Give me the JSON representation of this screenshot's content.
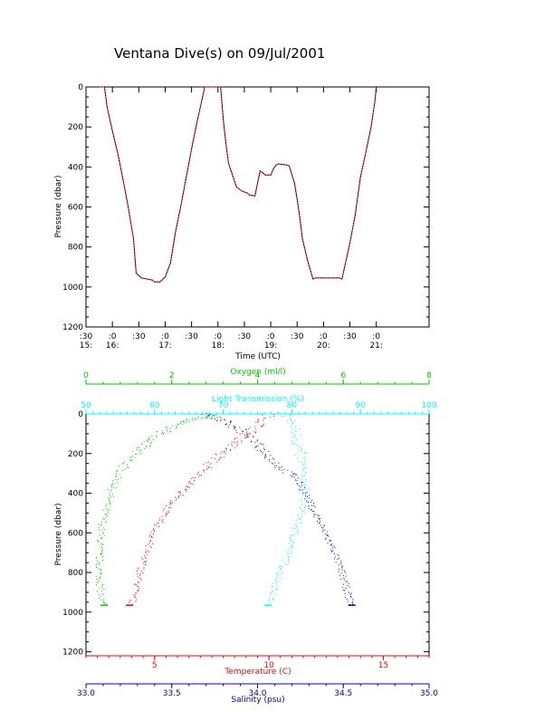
{
  "title": "Ventana Dive(s) on 09/Jul/2001",
  "colors": {
    "axes": "#000000",
    "dive_track": "#cc0000",
    "dive_track_points": "#000000",
    "temperature": "#ff0000",
    "salinity": "#0000cc",
    "oxygen": "#00cc00",
    "light_transmission": "#00ffff"
  },
  "chart_data": [
    {
      "type": "line",
      "title": "Ventana Dive(s) on 09/Jul/2001",
      "xlabel": "Time (UTC)",
      "ylabel": "Pressure (dbar)",
      "x_units": "hours UTC",
      "xlim": [
        15.5,
        22.0
      ],
      "ylim": [
        1200,
        0
      ],
      "y_ticks": [
        0,
        200,
        400,
        600,
        800,
        1000,
        1200
      ],
      "x_ticks": [
        {
          "x": 15.5,
          "top": ":30",
          "bottom": "15:"
        },
        {
          "x": 16.0,
          "top": ":0",
          "bottom": "16:"
        },
        {
          "x": 16.5,
          "top": ":30",
          "bottom": ""
        },
        {
          "x": 17.0,
          "top": ":0",
          "bottom": "17:"
        },
        {
          "x": 17.5,
          "top": ":30",
          "bottom": ""
        },
        {
          "x": 18.0,
          "top": ":0",
          "bottom": "18:"
        },
        {
          "x": 18.5,
          "top": ":30",
          "bottom": ""
        },
        {
          "x": 19.0,
          "top": ":0",
          "bottom": "19:"
        },
        {
          "x": 19.5,
          "top": ":30",
          "bottom": ""
        },
        {
          "x": 20.0,
          "top": ":0",
          "bottom": "20:"
        },
        {
          "x": 20.5,
          "top": ":30",
          "bottom": ""
        },
        {
          "x": 21.0,
          "top": ":0",
          "bottom": "21:"
        }
      ],
      "series": [
        {
          "x": [
            15.75,
            15.85,
            15.9,
            16.0,
            16.1,
            16.2,
            16.3,
            16.4,
            16.45,
            16.55,
            16.65,
            16.75,
            16.8,
            16.9,
            17.0,
            17.1,
            17.2,
            17.3,
            17.4,
            17.5,
            17.6,
            17.7,
            17.75,
            17.85,
            17.95,
            18.0,
            18.05,
            18.1,
            18.15,
            18.2,
            18.25,
            18.3,
            18.35,
            18.4,
            18.45,
            18.55,
            18.6,
            18.7,
            18.75,
            18.8,
            18.9,
            19.0,
            19.05,
            19.1,
            19.15,
            19.3,
            19.35,
            19.45,
            19.5,
            19.55,
            19.6,
            19.7,
            19.8,
            19.85,
            19.9,
            20.0,
            20.3,
            20.35,
            20.4,
            20.5,
            20.6,
            20.7,
            20.8,
            20.9,
            20.97,
            21.0
          ],
          "y": [
            0,
            0,
            100,
            220,
            330,
            460,
            600,
            760,
            930,
            955,
            960,
            965,
            975,
            975,
            950,
            880,
            720,
            590,
            450,
            310,
            180,
            60,
            0,
            0,
            0,
            0,
            0,
            160,
            280,
            380,
            420,
            460,
            500,
            510,
            520,
            530,
            540,
            545,
            480,
            420,
            440,
            440,
            410,
            390,
            385,
            390,
            395,
            480,
            560,
            650,
            760,
            870,
            960,
            955,
            955,
            955,
            955,
            960,
            900,
            780,
            640,
            450,
            330,
            200,
            80,
            0
          ]
        }
      ]
    },
    {
      "type": "scatter",
      "ylabel": "Pressure (dbar)",
      "ylim": [
        1220,
        0
      ],
      "y_ticks": [
        0,
        200,
        400,
        600,
        800,
        1000,
        1200
      ],
      "axes": {
        "oxygen": {
          "label": "Oxygen (ml/l)",
          "range": [
            0,
            8
          ],
          "ticks": [
            0,
            2,
            4,
            6,
            8
          ],
          "position": "top"
        },
        "light_transmission": {
          "label": "Light Transmission (%)",
          "range": [
            50,
            100
          ],
          "ticks": [
            50,
            60,
            70,
            80,
            90,
            100
          ],
          "position": "top"
        },
        "temperature": {
          "label": "Temperature (C)",
          "range": [
            2.0,
            17.0
          ],
          "ticks": [
            5,
            10,
            15
          ],
          "position": "bottom"
        },
        "salinity": {
          "label": "Salinity (psu)",
          "range": [
            33.0,
            35.0
          ],
          "ticks": [
            "33.0",
            "33.5",
            "34.0",
            "34.5",
            "35.0"
          ],
          "tick_values": [
            33.0,
            33.5,
            34.0,
            34.5,
            35.0
          ],
          "position": "bottom"
        }
      },
      "series": [
        {
          "name": "Oxygen (ml/l)",
          "axis": "oxygen",
          "x": [
            3.0,
            2.2,
            1.7,
            1.2,
            0.8,
            0.6,
            0.45,
            0.35,
            0.3,
            0.3,
            0.35,
            0.42
          ],
          "y": [
            0,
            40,
            100,
            180,
            280,
            380,
            480,
            580,
            700,
            820,
            940,
            965
          ]
        },
        {
          "name": "Light Transmission (%)",
          "axis": "light_transmission",
          "x": [
            79,
            80,
            80.5,
            81,
            81.5,
            82,
            81.5,
            80.5,
            79.5,
            78,
            77,
            76.5
          ],
          "y": [
            0,
            40,
            100,
            180,
            280,
            380,
            480,
            580,
            700,
            820,
            930,
            965
          ]
        },
        {
          "name": "Temperature (C)",
          "axis": "temperature",
          "x": [
            10.0,
            9.5,
            8.8,
            7.9,
            7.1,
            6.5,
            5.9,
            5.4,
            5.0,
            4.6,
            4.3,
            4.1,
            3.9
          ],
          "y": [
            0,
            60,
            120,
            200,
            280,
            360,
            420,
            500,
            580,
            700,
            820,
            920,
            965
          ]
        },
        {
          "name": "Salinity (psu)",
          "axis": "salinity",
          "x": [
            33.7,
            33.82,
            33.93,
            34.03,
            34.12,
            34.22,
            34.28,
            34.32,
            34.37,
            34.44,
            34.49,
            34.53,
            34.55
          ],
          "y": [
            0,
            40,
            100,
            180,
            260,
            320,
            400,
            480,
            560,
            680,
            800,
            920,
            965
          ]
        }
      ]
    }
  ]
}
